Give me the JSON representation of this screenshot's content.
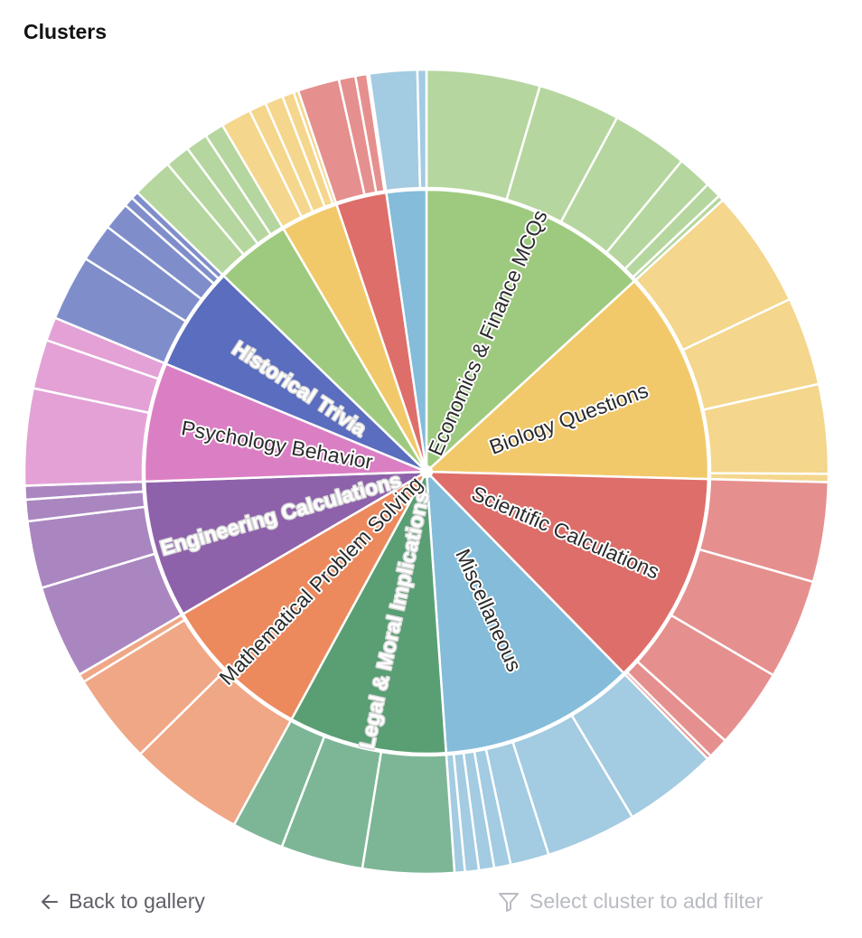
{
  "header": {
    "title": "Clusters"
  },
  "footer": {
    "back_label": "Back to gallery",
    "filter_hint": "Select cluster to add filter"
  },
  "chart_data": {
    "type": "sunburst",
    "title": "Clusters",
    "clusters": [
      {
        "name": "Economics & Finance MCQs",
        "color": "#9ECA7F",
        "child_color": "#B5D69E",
        "label_style": "dark",
        "children": [
          16.4,
          11.9,
          11.1,
          5.0,
          2.3,
          0.8
        ]
      },
      {
        "name": "Biology Questions",
        "color": "#F2C96A",
        "child_color": "#F4D68C",
        "label_style": "dark",
        "children": [
          17.1,
          12.8,
          12.9,
          1.2
        ]
      },
      {
        "name": "Scientific Calculations",
        "color": "#DE6E6A",
        "child_color": "#E5908E",
        "label_style": "dark",
        "children": [
          14.4,
          14.5,
          11.6,
          3.0,
          0.6
        ]
      },
      {
        "name": "Miscellaneous",
        "color": "#84BCDA",
        "child_color": "#A3CBE1",
        "label_style": "dark",
        "children": [
          13.6,
          13.1,
          5.6,
          2.4,
          2.2,
          2.0,
          1.5
        ]
      },
      {
        "name": "Legal & Moral Implications",
        "color": "#5A9F74",
        "child_color": "#7DB696",
        "label_style": "light",
        "children": [
          13.2,
          11.9,
          7.5
        ]
      },
      {
        "name": "Mathematical Problem Solving",
        "color": "#EC8A5E",
        "child_color": "#EFA786",
        "label_style": "dark",
        "children": [
          16.8,
          13.1,
          1.2
        ]
      },
      {
        "name": "Engineering Calculations",
        "color": "#8E62AA",
        "child_color": "#AA86C0",
        "label_style": "light",
        "children": [
          13.5,
          9.7,
          3.1,
          2.0
        ]
      },
      {
        "name": "Psychology Behavior",
        "color": "#DB7FC4",
        "child_color": "#E3A1D6",
        "label_style": "dark",
        "children": [
          14.0,
          7.1,
          3.4
        ]
      },
      {
        "name": "Historical Trivia",
        "color": "#5B6DBE",
        "child_color": "#7F8ECB",
        "label_style": "light",
        "children": [
          9.5,
          5.5,
          4.0,
          1.4,
          1.1
        ]
      },
      {
        "name": "",
        "color": "#9ECA7F",
        "child_color": "#B5D69E",
        "label_style": "dark",
        "children": [
          5.9,
          3.6,
          3.2,
          2.8
        ]
      },
      {
        "name": "",
        "color": "#F2C96A",
        "child_color": "#F4D68C",
        "label_style": "dark",
        "children": [
          4.4,
          2.5,
          2.6,
          1.7,
          0.7
        ]
      },
      {
        "name": "",
        "color": "#DE6E6A",
        "child_color": "#E5908E",
        "label_style": "dark",
        "children": [
          6.0,
          2.4,
          1.7,
          0.3
        ]
      },
      {
        "name": "",
        "color": "#84BCDA",
        "child_color": "#A3CBE1",
        "label_style": "dark",
        "children": [
          6.9,
          1.3
        ]
      }
    ]
  }
}
